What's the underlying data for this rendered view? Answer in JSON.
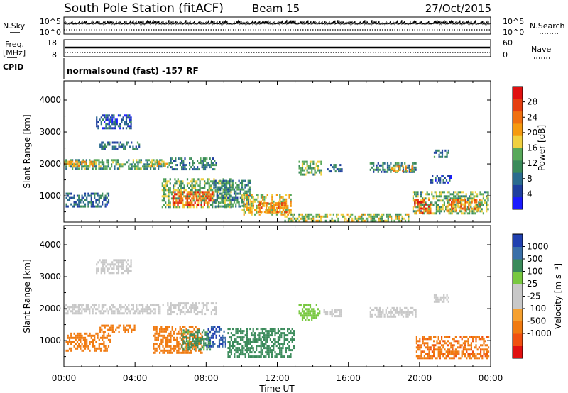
{
  "header": {
    "station": "South Pole Station (fitACF)",
    "beam": "Beam 15",
    "date": "27/Oct/2015"
  },
  "strip_labels": {
    "nsky": "N.Sky",
    "nsky_ticks": [
      "10^5",
      "10^0"
    ],
    "nsearch": "N.Search",
    "nsearch_ticks": [
      "10^5",
      "10^0"
    ],
    "freq_top": "Freq.",
    "freq_unit": "[MHz]",
    "freq_ticks": [
      "18",
      "8"
    ],
    "nave": "Nave",
    "nave_ticks": [
      "60",
      "0"
    ],
    "cpid": "CPID",
    "cpid_text": "normalsound (fast) -157 RF"
  },
  "colors": {
    "power_scale": [
      "#1a1aff",
      "#1f3f9e",
      "#2a6b8e",
      "#3a8a5a",
      "#58a85a",
      "#f0d040",
      "#f59a10",
      "#f07010",
      "#e53e10",
      "#e01010"
    ],
    "velocity_scale": [
      "#e01010",
      "#f05010",
      "#f07a10",
      "#f5a030",
      "#c8c8c8",
      "#c8c8c8",
      "#78c840",
      "#3a8a5a",
      "#3a6fa8",
      "#2040b0"
    ]
  },
  "chart_data": [
    {
      "type": "heatmap",
      "name": "power",
      "xlabel": "",
      "ylabel": "Slant Range [km]",
      "yticks": [
        1000,
        2000,
        3000,
        4000
      ],
      "ylim": [
        180,
        4600
      ],
      "colorbar_label": "Power [dB]",
      "colorbar_ticks": [
        4,
        8,
        12,
        16,
        20,
        24,
        28
      ],
      "colorbar_range": [
        0,
        32
      ],
      "patches": [
        {
          "t0": 0.0,
          "t1": 5.5,
          "r0": 1850,
          "r1": 2150,
          "value": 12
        },
        {
          "t0": 0.0,
          "t1": 1.8,
          "r0": 1950,
          "r1": 2100,
          "value": 20
        },
        {
          "t0": 4.6,
          "t1": 5.8,
          "r0": 1950,
          "r1": 2100,
          "value": 18
        },
        {
          "t0": 0.1,
          "t1": 2.5,
          "r0": 700,
          "r1": 1100,
          "value": 8
        },
        {
          "t0": 2.0,
          "t1": 4.2,
          "r0": 2450,
          "r1": 2700,
          "value": 8
        },
        {
          "t0": 1.8,
          "t1": 3.8,
          "r0": 3100,
          "r1": 3550,
          "value": 6
        },
        {
          "t0": 5.8,
          "t1": 8.6,
          "r0": 1850,
          "r1": 2200,
          "value": 10
        },
        {
          "t0": 5.5,
          "t1": 9.4,
          "r0": 650,
          "r1": 1550,
          "value": 14
        },
        {
          "t0": 6.1,
          "t1": 8.4,
          "r0": 750,
          "r1": 1150,
          "value": 26
        },
        {
          "t0": 8.4,
          "t1": 10.5,
          "r0": 700,
          "r1": 1500,
          "value": 10
        },
        {
          "t0": 10.0,
          "t1": 12.8,
          "r0": 450,
          "r1": 1050,
          "value": 18
        },
        {
          "t0": 10.9,
          "t1": 12.5,
          "r0": 500,
          "r1": 800,
          "value": 24
        },
        {
          "t0": 13.2,
          "t1": 14.5,
          "r0": 1650,
          "r1": 2100,
          "value": 14
        },
        {
          "t0": 14.8,
          "t1": 15.6,
          "r0": 1750,
          "r1": 2000,
          "value": 8
        },
        {
          "t0": 17.2,
          "t1": 19.8,
          "r0": 1750,
          "r1": 2050,
          "value": 10
        },
        {
          "t0": 18.4,
          "t1": 19.6,
          "r0": 1800,
          "r1": 1950,
          "value": 20
        },
        {
          "t0": 20.8,
          "t1": 21.6,
          "r0": 2200,
          "r1": 2450,
          "value": 8
        },
        {
          "t0": 20.6,
          "t1": 21.8,
          "r0": 1400,
          "r1": 1650,
          "value": 6
        },
        {
          "t0": 19.6,
          "t1": 23.9,
          "r0": 450,
          "r1": 1150,
          "value": 14
        },
        {
          "t0": 19.7,
          "t1": 20.6,
          "r0": 500,
          "r1": 900,
          "value": 26
        },
        {
          "t0": 21.5,
          "t1": 23.4,
          "r0": 550,
          "r1": 900,
          "value": 22
        },
        {
          "t0": 12.4,
          "t1": 19.5,
          "r0": 250,
          "r1": 450,
          "value": 16
        }
      ]
    },
    {
      "type": "heatmap",
      "name": "velocity",
      "xlabel": "Time UT",
      "ylabel": "Slant Range [km]",
      "xticks": [
        "00:00",
        "04:00",
        "08:00",
        "12:00",
        "16:00",
        "20:00",
        "00:00"
      ],
      "xlim": [
        0,
        24
      ],
      "yticks": [
        1000,
        2000,
        3000,
        4000
      ],
      "ylim": [
        180,
        4600
      ],
      "colorbar_label": "Velocity [m s⁻¹]",
      "colorbar_ticks": [
        "1000",
        "500",
        "100",
        "25",
        "-25",
        "-100",
        "-500",
        "-1000"
      ],
      "patches": [
        {
          "t0": 0.0,
          "t1": 5.6,
          "r0": 1850,
          "r1": 2150,
          "value": 0
        },
        {
          "t0": 5.8,
          "t1": 8.6,
          "r0": 1850,
          "r1": 2200,
          "value": 0
        },
        {
          "t0": 0.1,
          "t1": 2.6,
          "r0": 700,
          "r1": 1250,
          "value": -300
        },
        {
          "t0": 1.8,
          "t1": 3.8,
          "r0": 3100,
          "r1": 3550,
          "value": 0
        },
        {
          "t0": 2.0,
          "t1": 4.0,
          "r0": 1250,
          "r1": 1500,
          "value": -300
        },
        {
          "t0": 5.0,
          "t1": 7.8,
          "r0": 650,
          "r1": 1450,
          "value": -200
        },
        {
          "t0": 6.6,
          "t1": 8.2,
          "r0": 750,
          "r1": 1350,
          "value": 150
        },
        {
          "t0": 8.0,
          "t1": 9.1,
          "r0": 800,
          "r1": 1450,
          "value": 1000
        },
        {
          "t0": 9.2,
          "t1": 12.9,
          "r0": 500,
          "r1": 1400,
          "value": 300
        },
        {
          "t0": 13.2,
          "t1": 14.4,
          "r0": 1650,
          "r1": 2150,
          "value": 60
        },
        {
          "t0": 14.6,
          "t1": 15.6,
          "r0": 1800,
          "r1": 2000,
          "value": 0
        },
        {
          "t0": 17.2,
          "t1": 19.8,
          "r0": 1750,
          "r1": 2050,
          "value": 0
        },
        {
          "t0": 20.8,
          "t1": 21.6,
          "r0": 2200,
          "r1": 2450,
          "value": 0
        },
        {
          "t0": 19.8,
          "t1": 23.9,
          "r0": 450,
          "r1": 1150,
          "value": -400
        }
      ]
    }
  ]
}
